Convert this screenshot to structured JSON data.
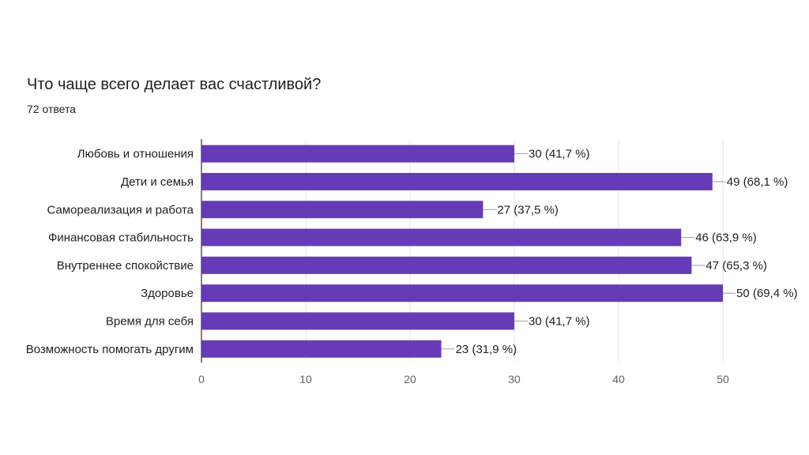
{
  "question": {
    "title": "Что чаще всего делает вас счастливой?",
    "responses": "72 ответа"
  },
  "colors": {
    "bar": "#673ab7",
    "grid": "#e6e6e6",
    "axis": "#000000",
    "text": "#202124",
    "tick": "#5f6368"
  },
  "chart_data": {
    "type": "bar",
    "orientation": "horizontal",
    "categories": [
      "Любовь и отношения",
      "Дети и семья",
      "Самореализация и работа",
      "Финансовая стабильность",
      "Внутреннее спокойствие",
      "Здоровье",
      "Время для себя",
      "Возможность помогать другим"
    ],
    "values": [
      30,
      49,
      27,
      46,
      47,
      50,
      30,
      23
    ],
    "data_labels": [
      "30 (41,7 %)",
      "49 (68,1 %)",
      "27 (37,5 %)",
      "46 (63,9 %)",
      "47 (65,3 %)",
      "50 (69,4 %)",
      "30 (41,7 %)",
      "23 (31,9 %)"
    ],
    "xlim": [
      0,
      50
    ],
    "xticks": [
      0,
      10,
      20,
      30,
      40,
      50
    ],
    "grid": true,
    "legend": "none"
  }
}
